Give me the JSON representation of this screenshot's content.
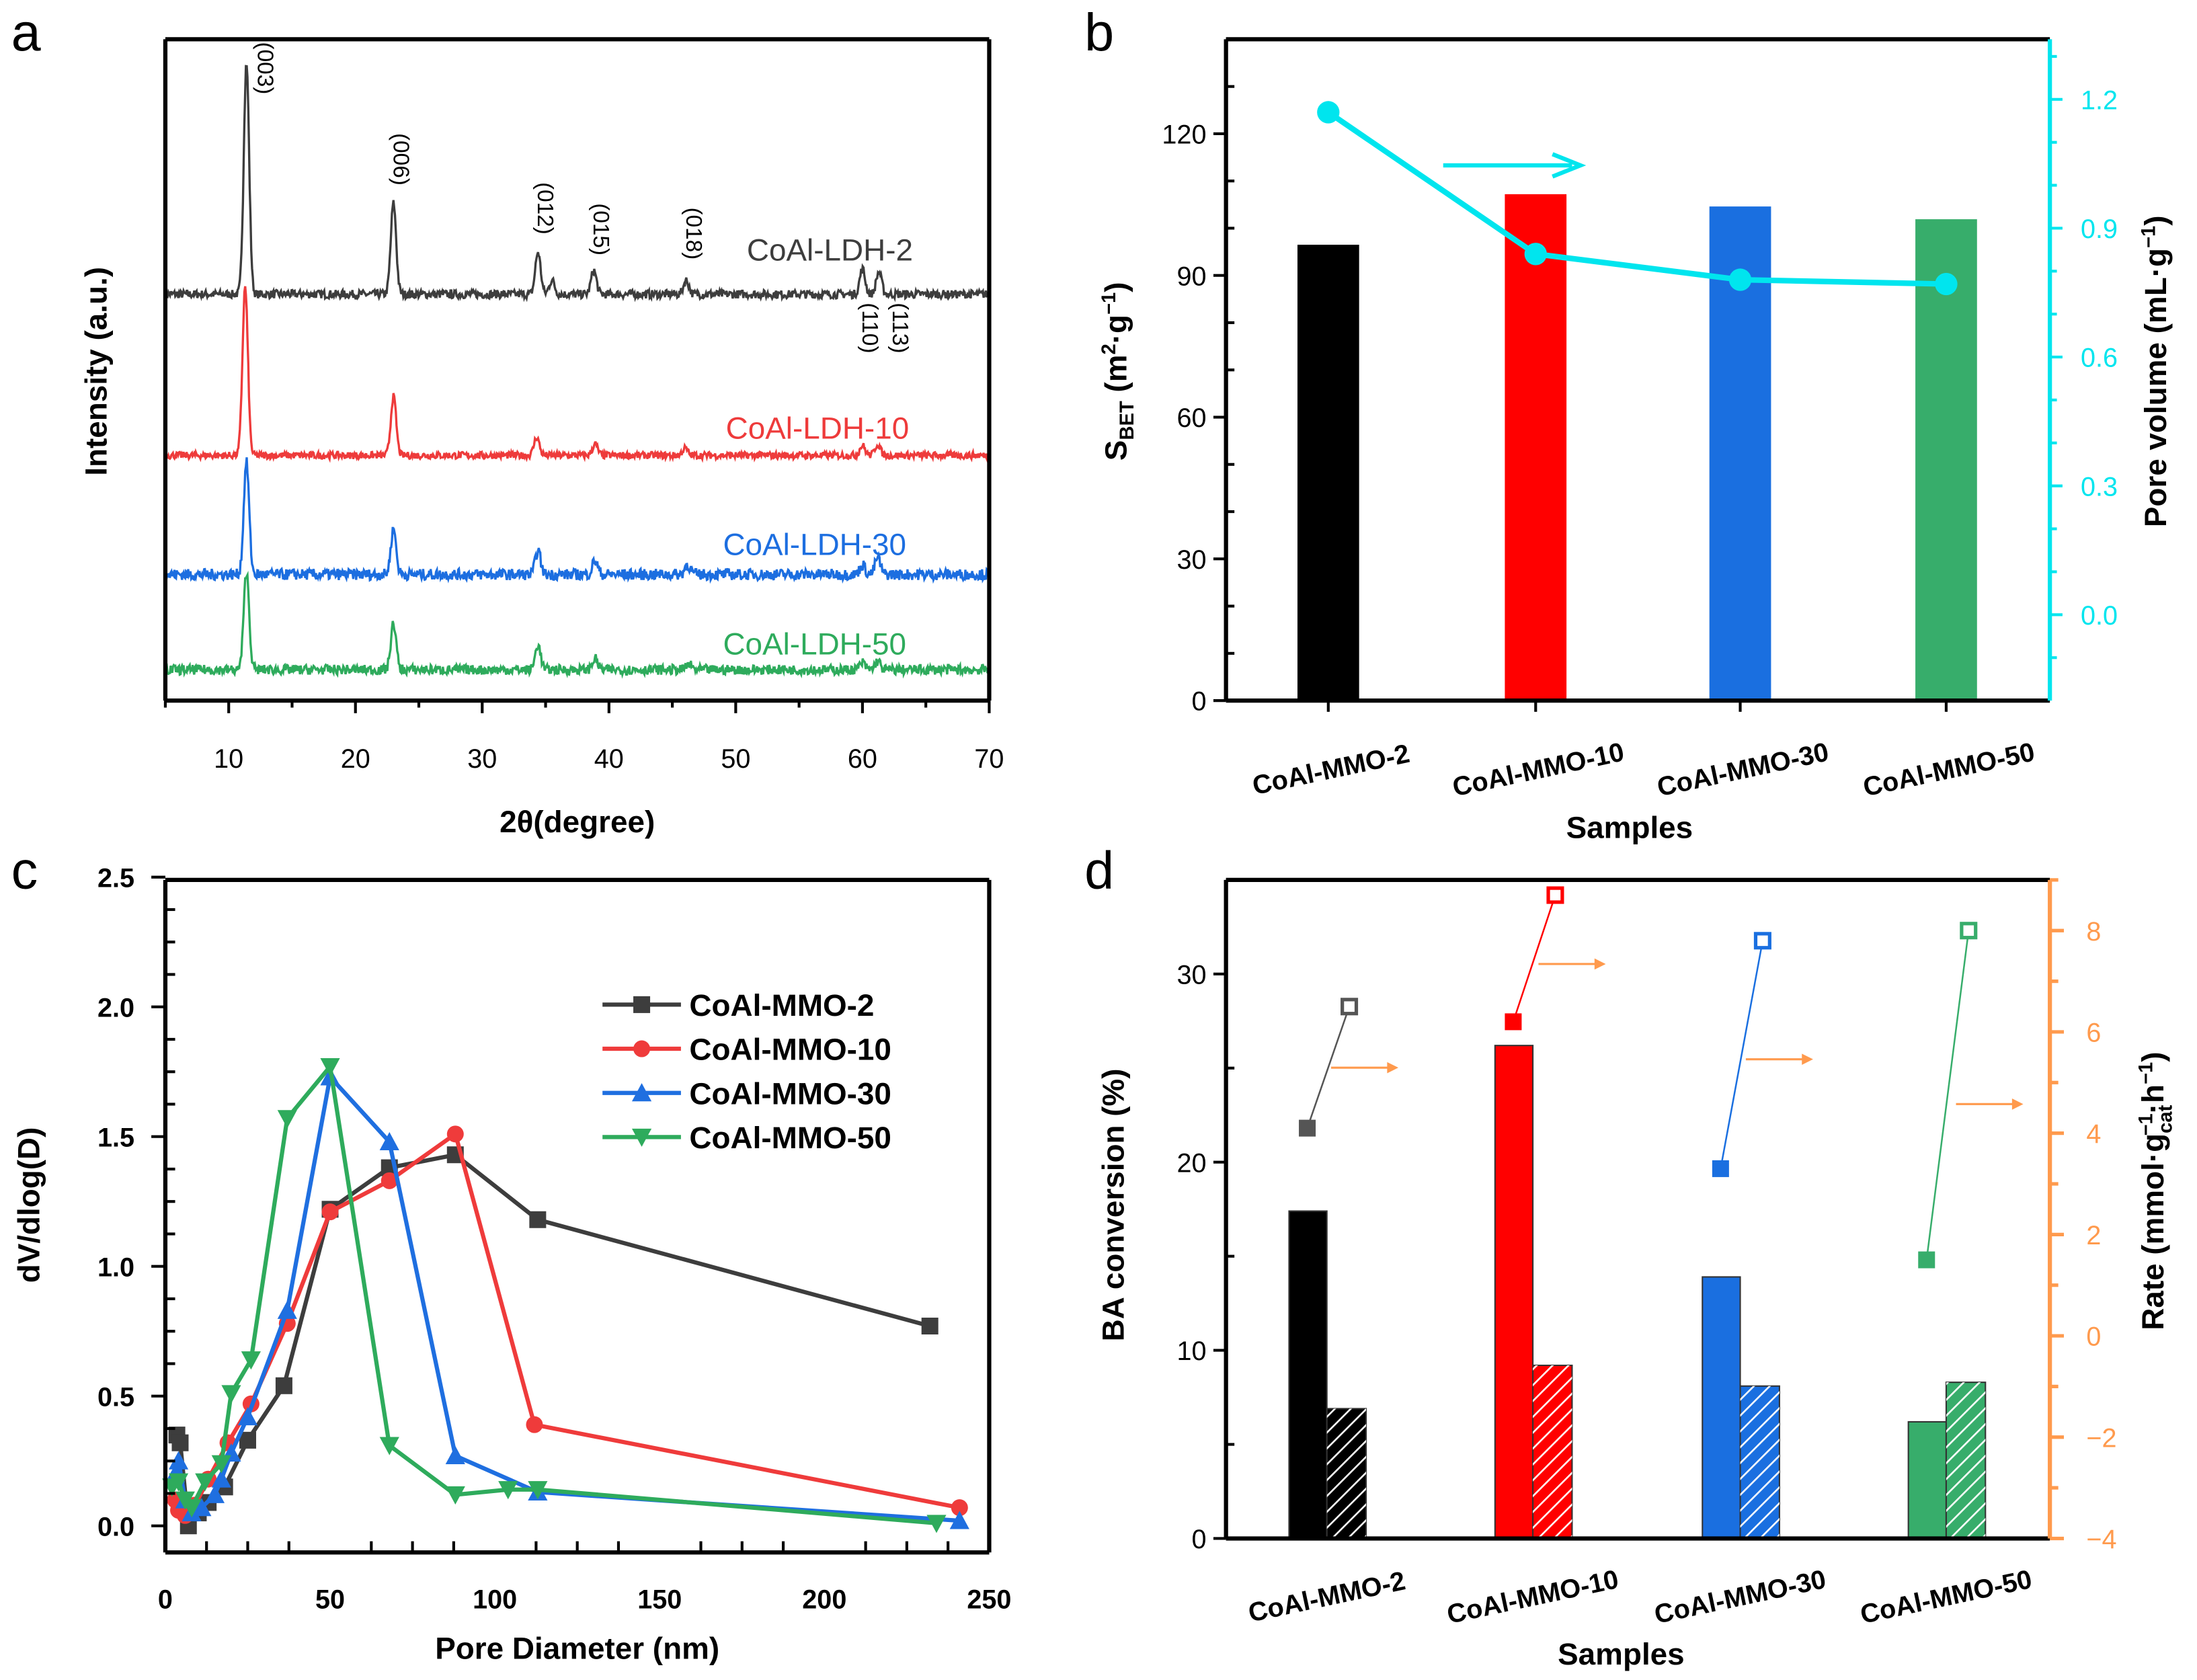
{
  "panels": {
    "a": "a",
    "b": "b",
    "c": "c",
    "d": "d"
  },
  "chart_data": [
    {
      "id": "a",
      "type": "line",
      "xlabel": "2θ(degree)",
      "ylabel": "Intensity (a.u.)",
      "xlim": [
        5,
        70
      ],
      "xticks": [
        10,
        20,
        30,
        40,
        50,
        60,
        70
      ],
      "ylim": [
        0,
        472
      ],
      "series": [
        {
          "name": "CoAl-LDH-2",
          "color": "#3d3d3d",
          "offset": 290,
          "noise": 3,
          "peaks": [
            [
              11.4,
              165
            ],
            [
              23.0,
              65
            ],
            [
              34.4,
              30
            ],
            [
              35.5,
              10
            ],
            [
              38.8,
              17
            ],
            [
              46.1,
              10
            ],
            [
              60.0,
              18
            ],
            [
              61.3,
              16
            ]
          ]
        },
        {
          "name": "CoAl-LDH-10",
          "color": "#ee3b3b",
          "offset": 175,
          "noise": 2.5,
          "peaks": [
            [
              11.3,
              120
            ],
            [
              23.0,
              42
            ],
            [
              34.3,
              13
            ],
            [
              38.9,
              8
            ],
            [
              46.0,
              5
            ],
            [
              60.0,
              7
            ],
            [
              61.2,
              8
            ]
          ]
        },
        {
          "name": "CoAl-LDH-30",
          "color": "#1c6ee0",
          "offset": 90,
          "noise": 4,
          "peaks": [
            [
              11.4,
              80
            ],
            [
              23.0,
              32
            ],
            [
              34.4,
              17
            ],
            [
              38.9,
              10
            ],
            [
              46.2,
              7
            ],
            [
              60.0,
              7
            ],
            [
              61.2,
              12
            ]
          ]
        },
        {
          "name": "CoAl-LDH-50",
          "color": "#2eab5c",
          "offset": 22,
          "noise": 3.5,
          "peaks": [
            [
              11.4,
              70
            ],
            [
              23.0,
              33
            ],
            [
              34.4,
              18
            ],
            [
              38.9,
              8
            ],
            [
              46.3,
              4
            ],
            [
              60.0,
              5
            ],
            [
              61.2,
              6
            ]
          ]
        }
      ],
      "peak_labels": [
        {
          "text": "(003)",
          "x": 12.3,
          "y": 470
        },
        {
          "text": "(006)",
          "x": 23.0,
          "y": 405
        },
        {
          "text": "(012)",
          "x": 34.4,
          "y": 370
        },
        {
          "text": "(015)",
          "x": 38.8,
          "y": 355
        },
        {
          "text": "(018)",
          "x": 46.1,
          "y": 352
        },
        {
          "text": "(110)",
          "x": 60.0,
          "y": 284
        },
        {
          "text": "(113)",
          "x": 62.4,
          "y": 284
        }
      ]
    },
    {
      "id": "b",
      "type": "bar",
      "xlabel": "Samples",
      "ylabel": "SBET (m2·g-1)",
      "ylabel_parts": {
        "main": "S",
        "sub": "BET",
        "units_open": " (m",
        "sup1": "2",
        "mid": "·g",
        "sup2": "−1",
        "close": ")"
      },
      "ylim": [
        0,
        140
      ],
      "yticks": [
        0,
        30,
        60,
        90,
        120
      ],
      "y2label": "Pore volume (mL·g−1)",
      "y2label_parts": {
        "main": "Pore volume (mL·g",
        "sup": "−1",
        "close": ")"
      },
      "y2lim": [
        -0.2,
        1.34
      ],
      "y2ticks": [
        "0.0",
        "0.3",
        "0.6",
        "0.9",
        "1.2"
      ],
      "categories": [
        "CoAl-MMO-2",
        "CoAl-MMO-10",
        "CoAl-MMO-30",
        "CoAl-MMO-50"
      ],
      "values": [
        96.5,
        107.2,
        104.6,
        101.9
      ],
      "bar_colors": [
        "#000000",
        "#ff0000",
        "#1a6fe0",
        "#37ad6b"
      ],
      "pore_volume": [
        1.17,
        0.84,
        0.78,
        0.77
      ],
      "pore_color": "#00e5ee"
    },
    {
      "id": "c",
      "type": "line",
      "xlabel": "Pore Diameter (nm)",
      "ylabel": "dV/dlog(D)",
      "xlim": [
        0,
        250
      ],
      "xticks": [
        0,
        50,
        100,
        150,
        200,
        250
      ],
      "ylim": [
        -0.1,
        2.5
      ],
      "yticks": [
        "0.0",
        "0.5",
        "1.0",
        "1.5",
        "2.0",
        "2.5"
      ],
      "legend": "upper-right",
      "series": [
        {
          "name": "CoAl-MMO-2",
          "color": "#3d3d3d",
          "marker": "square",
          "x": [
            3.5,
            4.5,
            7,
            10,
            13,
            18,
            25,
            36,
            50,
            68,
            88,
            113,
            232
          ],
          "y": [
            0.35,
            0.32,
            0.0,
            0.05,
            0.09,
            0.15,
            0.33,
            0.54,
            1.22,
            1.38,
            1.43,
            1.18,
            0.77
          ]
        },
        {
          "name": "CoAl-MMO-10",
          "color": "#ef3b3b",
          "marker": "circle",
          "x": [
            3,
            4,
            6,
            9,
            13,
            19,
            26,
            37,
            50,
            68,
            88,
            112,
            241
          ],
          "y": [
            0.1,
            0.06,
            0.04,
            0.08,
            0.18,
            0.32,
            0.47,
            0.78,
            1.21,
            1.33,
            1.51,
            0.39,
            0.07
          ]
        },
        {
          "name": "CoAl-MMO-30",
          "color": "#1f6fe0",
          "marker": "triangle-up",
          "x": [
            3,
            4,
            6,
            8,
            11,
            15,
            17,
            20,
            25,
            37,
            50,
            68,
            88,
            113,
            241
          ],
          "y": [
            0.2,
            0.25,
            0.1,
            0.05,
            0.07,
            0.12,
            0.18,
            0.28,
            0.42,
            0.83,
            1.73,
            1.48,
            0.27,
            0.13,
            0.02
          ]
        },
        {
          "name": "CoAl-MMO-50",
          "color": "#2eab5c",
          "marker": "triangle-down",
          "x": [
            2,
            4,
            6,
            8,
            12,
            17,
            20,
            26,
            37,
            50,
            68,
            88,
            104,
            113,
            234
          ],
          "y": [
            0.15,
            0.17,
            0.1,
            0.07,
            0.17,
            0.24,
            0.51,
            0.64,
            1.57,
            1.77,
            0.31,
            0.12,
            0.14,
            0.14,
            0.01
          ]
        }
      ]
    },
    {
      "id": "d",
      "type": "bar",
      "xlabel": "Samples",
      "ylabel": "BA conversion (%)",
      "ylim": [
        0,
        35
      ],
      "yticks": [
        0,
        10,
        20,
        30
      ],
      "y2label": "Rate (mmol·gcat−1·h−1)",
      "y2label_parts": {
        "main": "Rate (mmol·g",
        "sup": "−1",
        "sub": "cat",
        "mid": "·h",
        "sup2": "−1",
        "close": ")"
      },
      "y2lim": [
        -4,
        9
      ],
      "y2ticks": [
        -4,
        -2,
        0,
        2,
        4,
        6,
        8
      ],
      "y2color": "#ff9a4d",
      "categories": [
        "CoAl-MMO-2",
        "CoAl-MMO-10",
        "CoAl-MMO-30",
        "CoAl-MMO-50"
      ],
      "bar_colors": [
        "#000000",
        "#ff0000",
        "#1a6fe0",
        "#37ad6b"
      ],
      "conversion_solid": [
        17.4,
        26.2,
        13.9,
        6.2
      ],
      "conversion_hatched": [
        6.9,
        9.2,
        8.1,
        8.3
      ],
      "rate_filled": [
        4.1,
        6.2,
        3.3,
        1.5
      ],
      "rate_open": [
        6.5,
        8.7,
        7.8,
        8.0
      ]
    }
  ]
}
